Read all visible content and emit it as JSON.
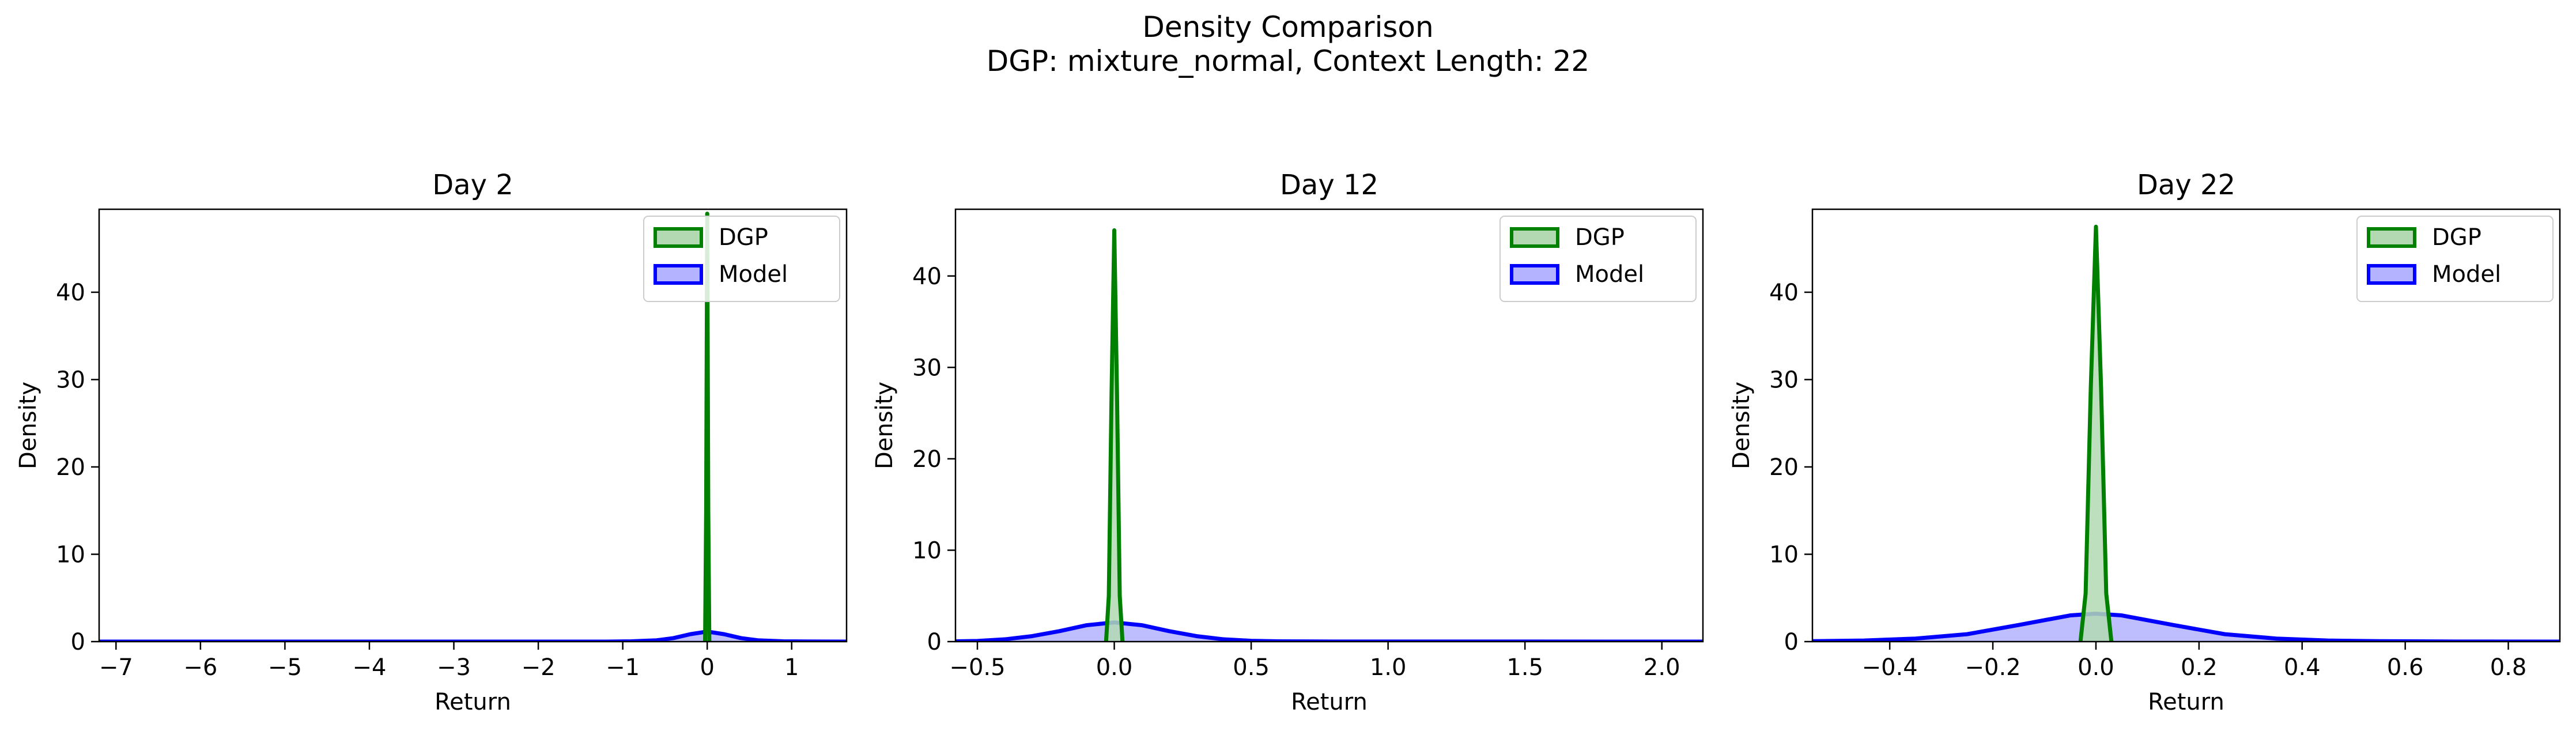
{
  "figure": {
    "title_line1": "Density Comparison",
    "title_line2": "DGP: mixture_normal, Context Length: 22"
  },
  "colors": {
    "dgp": "#008000",
    "dgp_fill": "#b3d9b3",
    "model": "#0000ff",
    "model_fill": "#b3b3ff"
  },
  "chart_data": [
    {
      "type": "area",
      "title": "Day 2",
      "xlabel": "Return",
      "ylabel": "Density",
      "xlim": [
        -7.2,
        1.65
      ],
      "ylim": [
        0,
        49.5
      ],
      "xticks": [
        -7,
        -6,
        -5,
        -4,
        -3,
        -2,
        -1,
        0,
        1
      ],
      "xtick_labels": [
        "−7",
        "−6",
        "−5",
        "−4",
        "−3",
        "−2",
        "−1",
        "0",
        "1"
      ],
      "yticks": [
        0,
        10,
        20,
        30,
        40
      ],
      "ytick_labels": [
        "0",
        "10",
        "20",
        "30",
        "40"
      ],
      "legend": {
        "position": "top-right",
        "entries": [
          "DGP",
          "Model"
        ]
      },
      "series": [
        {
          "name": "DGP",
          "x": [
            -0.025,
            -0.0125,
            0,
            0.0125,
            0.025
          ],
          "y": [
            0,
            15,
            49,
            15,
            0
          ]
        },
        {
          "name": "Model",
          "x": [
            -7.2,
            -1.2,
            -0.9,
            -0.6,
            -0.4,
            -0.2,
            0,
            0.2,
            0.4,
            0.6,
            0.9,
            1.65
          ],
          "y": [
            0,
            0,
            0.03,
            0.15,
            0.4,
            0.85,
            1.15,
            0.85,
            0.4,
            0.15,
            0.03,
            0
          ]
        }
      ]
    },
    {
      "type": "area",
      "title": "Day 12",
      "xlabel": "Return",
      "ylabel": "Density",
      "xlim": [
        -0.58,
        2.15
      ],
      "ylim": [
        0,
        47.3
      ],
      "xticks": [
        -0.5,
        0,
        0.5,
        1,
        1.5,
        2
      ],
      "xtick_labels": [
        "−0.5",
        "0.0",
        "0.5",
        "1.0",
        "1.5",
        "2.0"
      ],
      "yticks": [
        0,
        10,
        20,
        30,
        40
      ],
      "ytick_labels": [
        "0",
        "10",
        "20",
        "30",
        "40"
      ],
      "legend": {
        "position": "top-right",
        "entries": [
          "DGP",
          "Model"
        ]
      },
      "series": [
        {
          "name": "DGP",
          "x": [
            -0.03,
            -0.02,
            -0.01,
            0,
            0.01,
            0.02,
            0.03
          ],
          "y": [
            0,
            5,
            27,
            45,
            27,
            5,
            0
          ]
        },
        {
          "name": "Model",
          "x": [
            -0.58,
            -0.5,
            -0.4,
            -0.3,
            -0.2,
            -0.1,
            0,
            0.1,
            0.2,
            0.3,
            0.4,
            0.5,
            0.6,
            0.8,
            2.15
          ],
          "y": [
            0.03,
            0.07,
            0.25,
            0.6,
            1.15,
            1.8,
            2.1,
            1.8,
            1.15,
            0.6,
            0.25,
            0.09,
            0.03,
            0.01,
            0
          ]
        }
      ]
    },
    {
      "type": "area",
      "title": "Day 22",
      "xlabel": "Return",
      "ylabel": "Density",
      "xlim": [
        -0.55,
        0.9
      ],
      "ylim": [
        0,
        49.5
      ],
      "xticks": [
        -0.4,
        -0.2,
        0,
        0.2,
        0.4,
        0.6,
        0.8
      ],
      "xtick_labels": [
        "−0.4",
        "−0.2",
        "0.0",
        "0.2",
        "0.4",
        "0.6",
        "0.8"
      ],
      "yticks": [
        0,
        10,
        20,
        30,
        40
      ],
      "ytick_labels": [
        "0",
        "10",
        "20",
        "30",
        "40"
      ],
      "legend": {
        "position": "top-right",
        "entries": [
          "DGP",
          "Model"
        ]
      },
      "series": [
        {
          "name": "DGP",
          "x": [
            -0.03,
            -0.02,
            -0.01,
            0,
            0.01,
            0.02,
            0.03
          ],
          "y": [
            0,
            5.5,
            29,
            47.5,
            29,
            5.5,
            0
          ]
        },
        {
          "name": "Model",
          "x": [
            -0.55,
            -0.45,
            -0.35,
            -0.25,
            -0.15,
            -0.05,
            0,
            0.05,
            0.15,
            0.25,
            0.35,
            0.45,
            0.55,
            0.7,
            0.9
          ],
          "y": [
            0.05,
            0.12,
            0.35,
            0.85,
            1.9,
            3.0,
            3.2,
            3.0,
            1.9,
            0.85,
            0.35,
            0.12,
            0.05,
            0.01,
            0
          ]
        }
      ]
    }
  ]
}
